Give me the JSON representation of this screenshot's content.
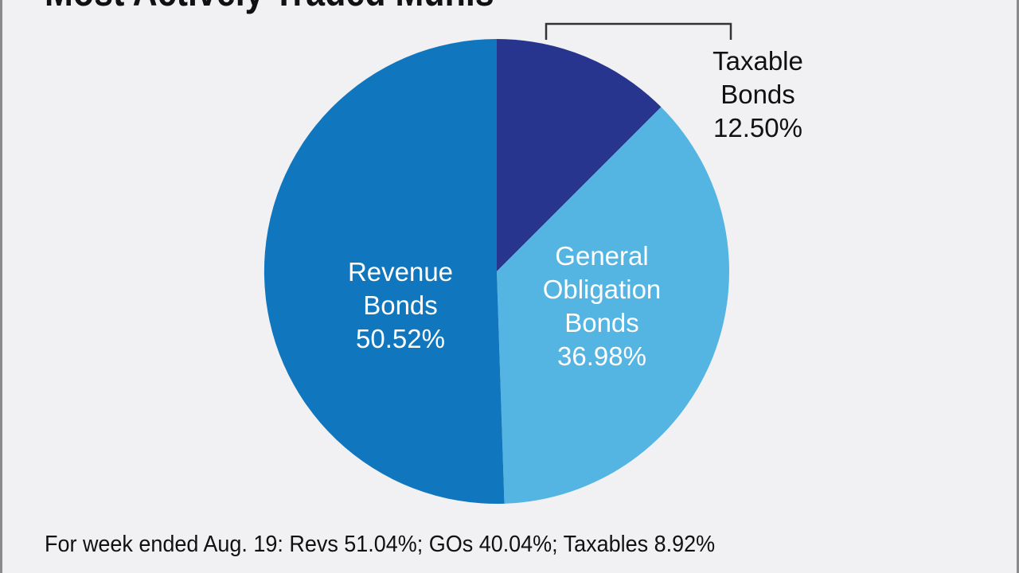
{
  "chart_data": {
    "type": "pie",
    "title": "Most Actively Traded Munis",
    "slices": [
      {
        "label": [
          "Taxable",
          "Bonds",
          "12.50%"
        ],
        "name": "Taxable Bonds",
        "value": 12.5,
        "color": "#27358f",
        "text_color": "#111111"
      },
      {
        "label": [
          "General",
          "Obligation",
          "Bonds",
          "36.98%"
        ],
        "name": "General Obligation Bonds",
        "value": 36.98,
        "color": "#54b4e2",
        "text_color": "#ffffff"
      },
      {
        "label": [
          "Revenue",
          "Bonds",
          "50.52%"
        ],
        "name": "Revenue Bonds",
        "value": 50.52,
        "color": "#1076bd",
        "text_color": "#ffffff"
      }
    ],
    "start_angle": "12 o'clock",
    "direction": "clockwise",
    "footnote": "For week ended Aug. 19: Revs 51.04%; GOs 40.04%; Taxables 8.92%"
  }
}
